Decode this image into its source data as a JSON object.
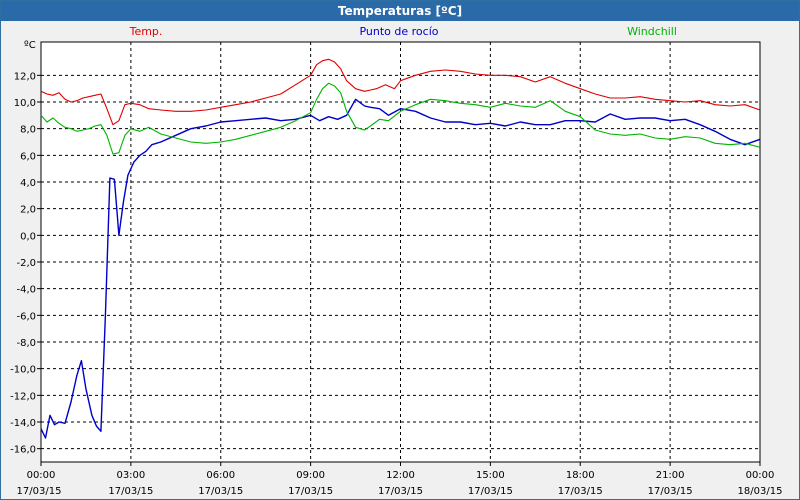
{
  "window": {
    "title": "Temperaturas [ºC]"
  },
  "chart_data": {
    "type": "line",
    "title": "Temperaturas [ºC]",
    "ylabel": "ºC",
    "ylim": [
      -17,
      14.5
    ],
    "xlim": [
      0,
      24
    ],
    "grid": true,
    "y_ticks": [
      "12,0",
      "10,0",
      "8,0",
      "6,0",
      "4,0",
      "2,0",
      "0,0",
      "-2,0",
      "-4,0",
      "-6,0",
      "-8,0",
      "-10,0",
      "-12,0",
      "-14,0",
      "-16,0"
    ],
    "y_tick_values": [
      12,
      10,
      8,
      6,
      4,
      2,
      0,
      -2,
      -4,
      -6,
      -8,
      -10,
      -12,
      -14,
      -16
    ],
    "x_ticks": [
      {
        "time": "00:00",
        "date": "17/03/15"
      },
      {
        "time": "03:00",
        "date": "17/03/15"
      },
      {
        "time": "06:00",
        "date": "17/03/15"
      },
      {
        "time": "09:00",
        "date": "17/03/15"
      },
      {
        "time": "12:00",
        "date": "17/03/15"
      },
      {
        "time": "15:00",
        "date": "17/03/15"
      },
      {
        "time": "18:00",
        "date": "17/03/15"
      },
      {
        "time": "21:00",
        "date": "17/03/15"
      },
      {
        "time": "00:00",
        "date": "18/03/15"
      }
    ],
    "x_tick_hours": [
      0,
      3,
      6,
      9,
      12,
      15,
      18,
      21,
      24
    ],
    "series": [
      {
        "name": "Temp.",
        "color": "#e00000",
        "x": [
          0,
          0.2,
          0.4,
          0.6,
          0.8,
          1.0,
          1.2,
          1.4,
          1.6,
          1.8,
          2.0,
          2.2,
          2.4,
          2.6,
          2.8,
          3.0,
          3.3,
          3.6,
          4.0,
          4.5,
          5.0,
          5.5,
          6.0,
          6.5,
          7.0,
          7.5,
          8.0,
          8.5,
          9.0,
          9.2,
          9.4,
          9.6,
          9.8,
          10.0,
          10.2,
          10.5,
          10.8,
          11.0,
          11.2,
          11.5,
          11.8,
          12.0,
          12.5,
          13.0,
          13.5,
          14.0,
          14.5,
          15.0,
          15.5,
          16.0,
          16.5,
          17.0,
          17.5,
          18.0,
          18.5,
          19.0,
          19.5,
          20.0,
          20.5,
          21.0,
          21.5,
          22.0,
          22.5,
          23.0,
          23.5,
          24.0
        ],
        "y": [
          10.8,
          10.6,
          10.5,
          10.7,
          10.2,
          10.0,
          10.1,
          10.3,
          10.4,
          10.5,
          10.6,
          9.5,
          8.3,
          8.6,
          9.8,
          9.9,
          9.8,
          9.5,
          9.4,
          9.3,
          9.3,
          9.4,
          9.6,
          9.8,
          10.0,
          10.3,
          10.6,
          11.3,
          12.0,
          12.8,
          13.1,
          13.2,
          13.0,
          12.5,
          11.6,
          11.0,
          10.8,
          10.9,
          11.0,
          11.3,
          11.0,
          11.6,
          12.0,
          12.3,
          12.4,
          12.3,
          12.1,
          12.0,
          12.0,
          11.9,
          11.5,
          11.9,
          11.4,
          11.0,
          10.6,
          10.3,
          10.3,
          10.4,
          10.2,
          10.1,
          10.0,
          10.1,
          9.8,
          9.7,
          9.8,
          9.4
        ]
      },
      {
        "name": "Punto de rocío",
        "color": "#0000c8",
        "x": [
          0,
          0.15,
          0.3,
          0.45,
          0.6,
          0.8,
          1.0,
          1.2,
          1.35,
          1.5,
          1.7,
          1.85,
          2.0,
          2.15,
          2.3,
          2.45,
          2.6,
          2.75,
          2.9,
          3.1,
          3.3,
          3.5,
          3.7,
          4.0,
          4.5,
          5.0,
          5.5,
          6.0,
          6.5,
          7.0,
          7.5,
          8.0,
          8.5,
          9.0,
          9.3,
          9.6,
          9.9,
          10.2,
          10.5,
          10.8,
          11.0,
          11.3,
          11.6,
          12.0,
          12.5,
          13.0,
          13.5,
          14.0,
          14.5,
          15.0,
          15.5,
          16.0,
          16.5,
          17.0,
          17.5,
          18.0,
          18.5,
          19.0,
          19.5,
          20.0,
          20.5,
          21.0,
          21.5,
          22.0,
          22.5,
          23.0,
          23.5,
          24.0
        ],
        "y": [
          -14.5,
          -15.2,
          -13.5,
          -14.2,
          -14.0,
          -14.1,
          -12.5,
          -10.5,
          -9.4,
          -11.5,
          -13.5,
          -14.3,
          -14.7,
          -6.0,
          4.3,
          4.2,
          0.0,
          2.5,
          4.5,
          5.5,
          6.0,
          6.3,
          6.8,
          7.0,
          7.5,
          8.0,
          8.2,
          8.5,
          8.6,
          8.7,
          8.8,
          8.6,
          8.7,
          9.0,
          8.6,
          8.9,
          8.7,
          9.0,
          10.2,
          9.7,
          9.6,
          9.5,
          9.0,
          9.5,
          9.3,
          8.8,
          8.5,
          8.5,
          8.3,
          8.4,
          8.2,
          8.5,
          8.3,
          8.3,
          8.6,
          8.6,
          8.5,
          9.1,
          8.7,
          8.8,
          8.8,
          8.6,
          8.7,
          8.3,
          7.8,
          7.2,
          6.8,
          7.2
        ]
      },
      {
        "name": "Windchill",
        "color": "#00b400",
        "x": [
          0,
          0.2,
          0.4,
          0.6,
          0.8,
          1.0,
          1.2,
          1.4,
          1.6,
          1.8,
          2.0,
          2.2,
          2.4,
          2.6,
          2.8,
          3.0,
          3.3,
          3.6,
          4.0,
          4.5,
          5.0,
          5.5,
          6.0,
          6.5,
          7.0,
          7.5,
          8.0,
          8.5,
          9.0,
          9.2,
          9.4,
          9.6,
          9.8,
          10.0,
          10.2,
          10.5,
          10.8,
          11.0,
          11.3,
          11.6,
          12.0,
          12.5,
          13.0,
          13.5,
          14.0,
          14.5,
          15.0,
          15.5,
          16.0,
          16.5,
          17.0,
          17.5,
          18.0,
          18.5,
          19.0,
          19.5,
          20.0,
          20.5,
          21.0,
          21.5,
          22.0,
          22.5,
          23.0,
          23.5,
          24.0
        ],
        "y": [
          9.0,
          8.5,
          8.8,
          8.4,
          8.1,
          8.0,
          7.8,
          7.9,
          8.0,
          8.2,
          8.3,
          7.5,
          6.1,
          6.2,
          7.5,
          8.0,
          7.8,
          8.1,
          7.6,
          7.3,
          7.0,
          6.9,
          7.0,
          7.2,
          7.5,
          7.8,
          8.1,
          8.6,
          9.2,
          10.2,
          11.0,
          11.4,
          11.2,
          10.7,
          9.3,
          8.1,
          7.9,
          8.2,
          8.7,
          8.6,
          9.3,
          9.8,
          10.2,
          10.1,
          9.9,
          9.8,
          9.6,
          9.9,
          9.7,
          9.6,
          10.1,
          9.3,
          8.9,
          7.9,
          7.6,
          7.5,
          7.6,
          7.3,
          7.2,
          7.4,
          7.3,
          6.9,
          6.8,
          6.9,
          6.6
        ]
      }
    ]
  }
}
